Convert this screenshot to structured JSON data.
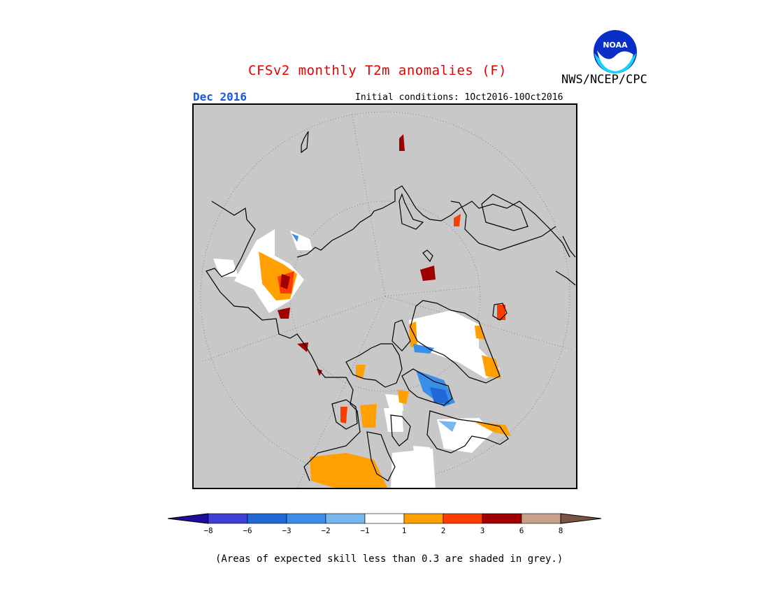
{
  "header": {
    "title": "CFSv2 monthly T2m anomalies (F)",
    "agency": "NWS/NCEP/CPC",
    "logo_text": "NOAA",
    "target_period": "Dec 2016",
    "initial_conditions": "Initial conditions: 1Oct2016-10Oct2016"
  },
  "map": {
    "projection": "north polar stereographic",
    "background_color": "#c8c8c8",
    "land_outline_color": "#000000",
    "graticule": "dotted grey"
  },
  "colorbar": {
    "tick_labels": [
      "−8",
      "−6",
      "−3",
      "−2",
      "−1",
      "1",
      "2",
      "3",
      "6",
      "8"
    ],
    "colors": [
      "#1e0ea0",
      "#3f3fd6",
      "#1f68d6",
      "#3a8ee8",
      "#78b6f0",
      "#ffffff",
      "#ffa000",
      "#ff3c00",
      "#a00000",
      "#c8a08c",
      "#7a5542"
    ]
  },
  "footnote": "(Areas of expected skill less than 0.3 are shaded in grey.)"
}
